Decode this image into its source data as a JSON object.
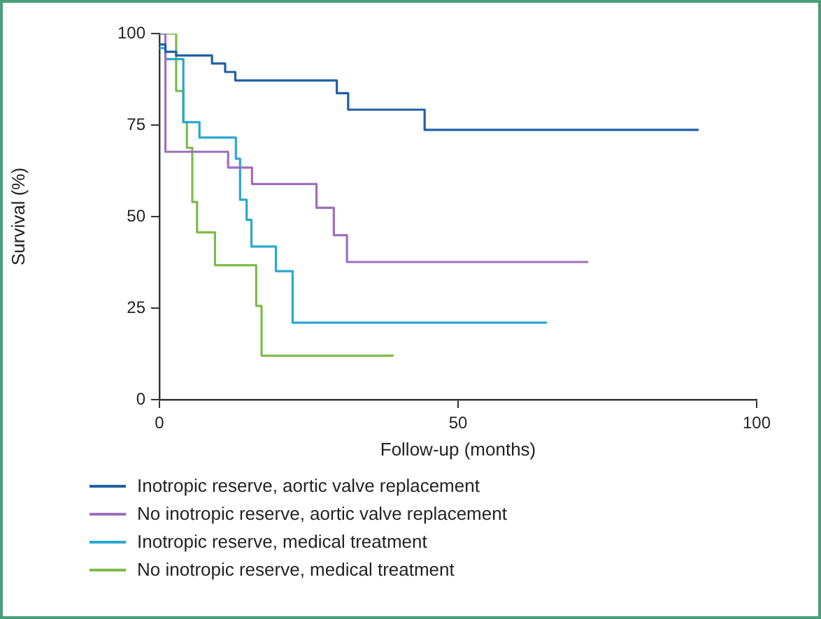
{
  "chart_data": {
    "type": "step",
    "xlabel": "Follow-up (months)",
    "ylabel": "Survival (%)",
    "xlim": [
      0,
      100
    ],
    "ylim": [
      0,
      100
    ],
    "xticks": [
      0,
      50,
      100
    ],
    "yticks": [
      0,
      25,
      50,
      75,
      100
    ],
    "grid": false,
    "legend": "bottom",
    "series": [
      {
        "name": "Inotropic reserve, aortic valve replacement",
        "color": "#1f5fa6",
        "x": [
          0,
          1,
          2.8,
          8.8,
          11,
          12.7,
          29.7,
          31.6,
          44.4,
          90.3
        ],
        "values": [
          97,
          95,
          94,
          91.8,
          89.5,
          87.2,
          83.7,
          79.2,
          73.7,
          73.7
        ]
      },
      {
        "name": "No inotropic reserve, aortic valve replacement",
        "color": "#9e6fbf",
        "x": [
          0,
          1,
          11.5,
          15.5,
          26.3,
          29.2,
          31.4,
          71.8
        ],
        "values": [
          100,
          67.7,
          63.4,
          58.9,
          52.4,
          44.9,
          37.6,
          37.6
        ]
      },
      {
        "name": "Inotropic reserve, medical treatment",
        "color": "#2aa7d0",
        "x": [
          0,
          1,
          4,
          6.7,
          12.8,
          13.5,
          14.6,
          15.4,
          19.5,
          22.3,
          64.9
        ],
        "values": [
          96,
          93,
          75.8,
          71.6,
          65.8,
          54.6,
          49.1,
          41.8,
          35.1,
          21,
          21
        ]
      },
      {
        "name": "No inotropic reserve, medical treatment",
        "color": "#7cbc4a",
        "x": [
          0,
          2.8,
          4,
          4.6,
          5.5,
          6.3,
          9.3,
          16.2,
          17.1,
          39.2
        ],
        "values": [
          100,
          84.3,
          75.8,
          68.8,
          54,
          45.7,
          36.7,
          25.6,
          12,
          12
        ]
      }
    ]
  }
}
